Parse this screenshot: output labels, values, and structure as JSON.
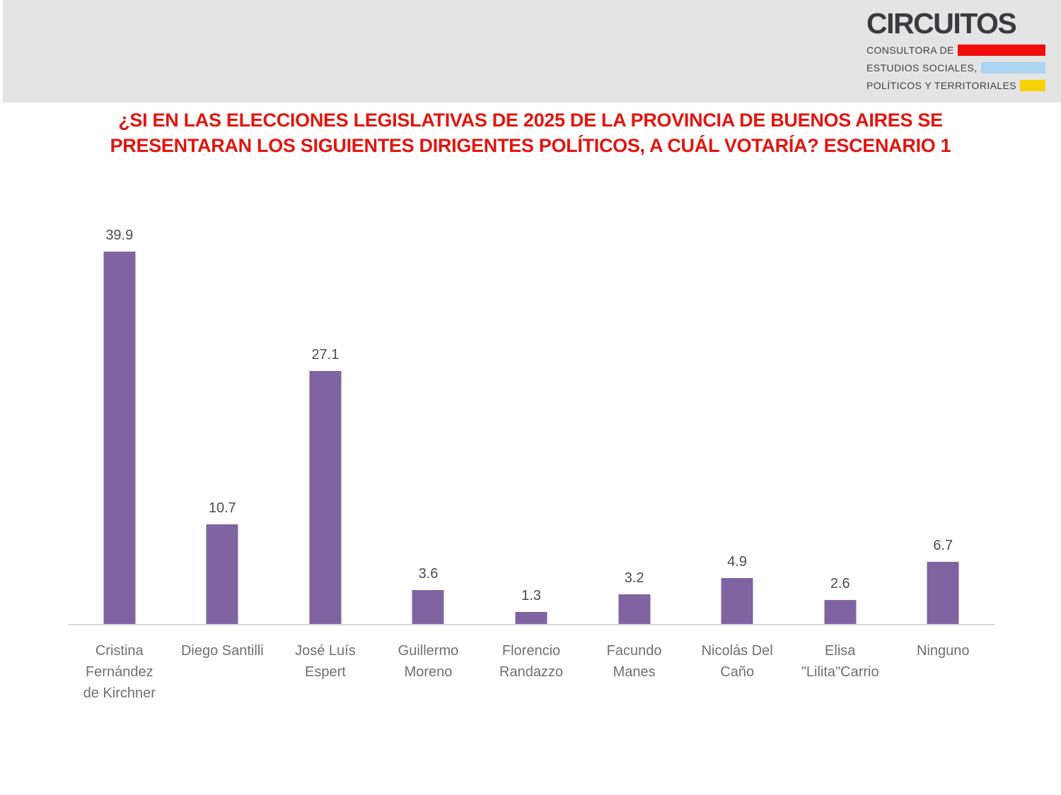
{
  "header": {
    "logo": {
      "brand": "CIRCUITOS",
      "tagline_lines": [
        {
          "text": "CONSULTORA DE",
          "swatch": "red-swatch",
          "swatch_color": "#F20D0D"
        },
        {
          "text": "ESTUDIOS SOCIALES,",
          "swatch": "blue-swatch",
          "swatch_color": "#AAD4F0"
        },
        {
          "text": "POLÍTICOS Y TERRITORIALES",
          "swatch": "yellow-swatch",
          "swatch_color": "#F8D200"
        }
      ],
      "band_color": "#E4E4E4"
    }
  },
  "title": {
    "lines": [
      "¿SI EN LAS ELECCIONES LEGISLATIVAS DE 2025 DE LA PROVINCIA DE BUENOS AIRES SE",
      "PRESENTARAN LOS SIGUIENTES DIRIGENTES POLÍTICOS, A CUÁL VOTARÍA? ESCENARIO 1"
    ],
    "color": "#E2150F"
  },
  "chart_data": {
    "type": "bar",
    "title": "¿Si en las elecciones legislativas de 2025 de la Provincia de Buenos Aires se presentaran los siguientes dirigentes políticos, a cuál votaría? Escenario 1",
    "categories": [
      "Cristina Fernández de Kirchner",
      "Diego Santilli",
      "José Luís Espert",
      "Guillermo Moreno",
      "Florencio Randazzo",
      "Facundo Manes",
      "Nicolás Del Caño",
      "Elisa \"Lilita\"Carrio",
      "Ninguno"
    ],
    "category_label_lines": [
      [
        "Cristina",
        "Fernández",
        "de Kirchner"
      ],
      [
        "Diego Santilli"
      ],
      [
        "José Luís",
        "Espert"
      ],
      [
        "Guillermo",
        "Moreno"
      ],
      [
        "Florencio",
        "Randazzo"
      ],
      [
        "Facundo",
        "Manes"
      ],
      [
        "Nicolás Del",
        "Caño"
      ],
      [
        "Elisa",
        "\"Lilita\"Carrio"
      ],
      [
        "Ninguno"
      ]
    ],
    "values": [
      39.9,
      10.7,
      27.1,
      3.6,
      1.3,
      3.2,
      4.9,
      2.6,
      6.7
    ],
    "data_labels": [
      "39.9",
      "10.7",
      "27.1",
      "3.6",
      "1.3",
      "3.2",
      "4.9",
      "2.6",
      "6.7"
    ],
    "xlabel": "",
    "ylabel": "",
    "ylim": [
      0,
      41.9
    ],
    "grid": false,
    "legend": false,
    "bar_color": "#8064A2",
    "value_label_color": "#4D4D4D",
    "category_label_color": "#707070",
    "axis_line_color": "#D9D9D9"
  }
}
